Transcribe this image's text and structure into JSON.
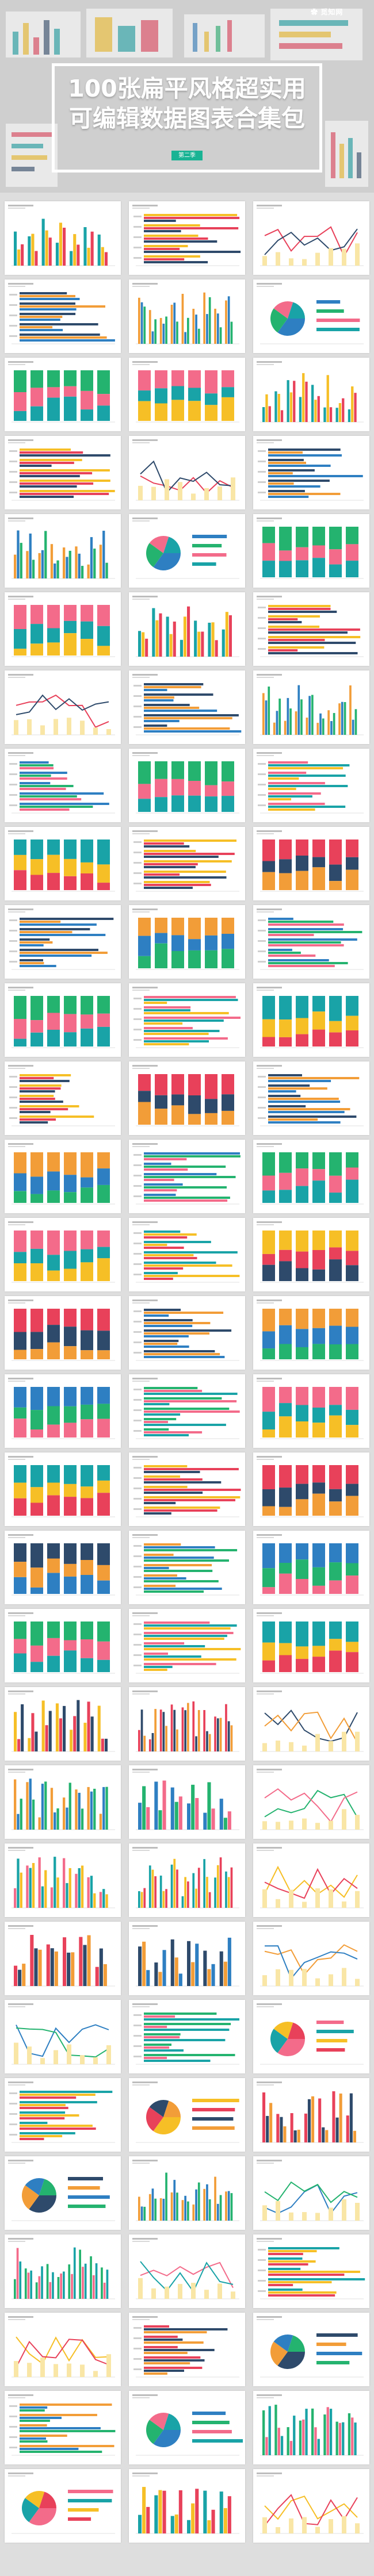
{
  "hero": {
    "title_line1": "100张扁平风格超实用",
    "title_line2": "可编辑数据图表合集包",
    "badge": "第二季",
    "logo": "觅知网"
  },
  "colors": {
    "teal": "#19a3a7",
    "yellow": "#f6bf26",
    "red": "#e8415a",
    "orange": "#f29d38",
    "blue": "#2e7fc2",
    "navy": "#2e4a6b",
    "green": "#24b36f",
    "pink": "#f36b8a",
    "lightpink": "#f7b8c4",
    "lightyellow": "#f9e6a6",
    "badge_green": "#19b394"
  },
  "icons": [
    "logo-icon"
  ]
}
